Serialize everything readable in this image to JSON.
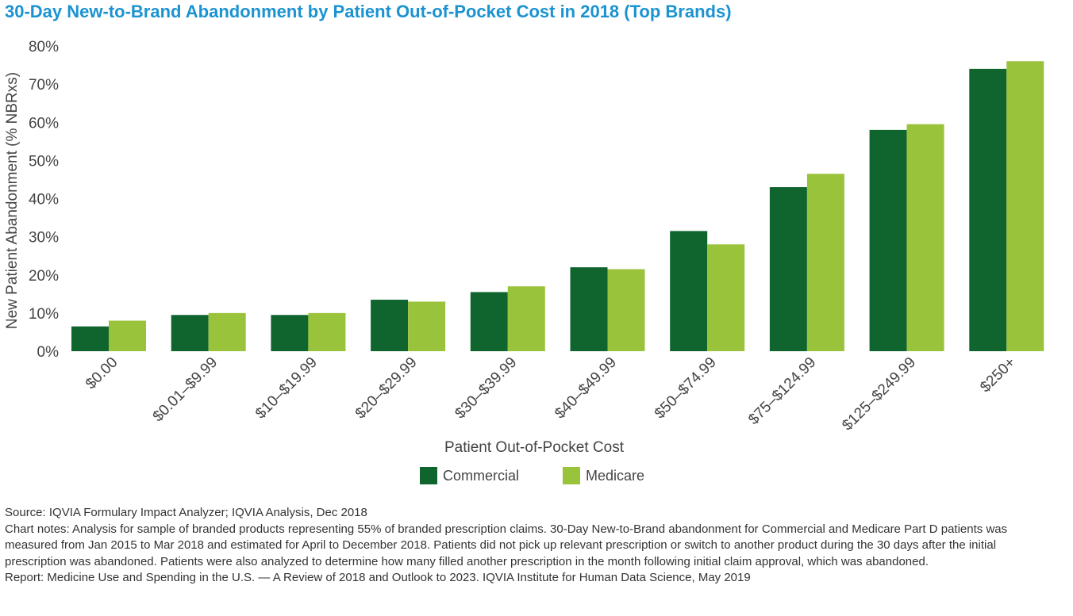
{
  "chart_data": {
    "type": "bar",
    "title": "30-Day New-to-Brand Abandonment by Patient Out-of-Pocket Cost in 2018 (Top Brands)",
    "xlabel": "Patient Out-of-Pocket Cost",
    "ylabel": "New Patient Abandonment (% NBRxs)",
    "ylim": [
      0,
      80
    ],
    "yticks": [
      0,
      10,
      20,
      30,
      40,
      50,
      60,
      70,
      80
    ],
    "ytick_labels": [
      "0%",
      "10%",
      "20%",
      "30%",
      "40%",
      "50%",
      "60%",
      "70%",
      "80%"
    ],
    "grid": false,
    "legend_position": "bottom-center",
    "categories": [
      "$0.00",
      "$0.01–$9.99",
      "$10–$19.99",
      "$20–$29.99",
      "$30–$39.99",
      "$40–$49.99",
      "$50–$74.99",
      "$75–$124.99",
      "$125–$249.99",
      "$250+"
    ],
    "series": [
      {
        "name": "Commercial",
        "color": "#10652f",
        "values": [
          6.5,
          9.5,
          9.5,
          13.5,
          15.5,
          22,
          31.5,
          43,
          58,
          74
        ]
      },
      {
        "name": "Medicare",
        "color": "#9ac33c",
        "values": [
          8,
          10,
          10,
          13,
          17,
          21.5,
          28,
          46.5,
          59.5,
          76
        ]
      }
    ]
  },
  "notes": {
    "source": "Source: IQVIA Formulary Impact Analyzer; IQVIA Analysis, Dec 2018",
    "chart_notes": "Chart notes: Analysis for sample of branded products representing 55% of branded prescription claims. 30-Day New-to-Brand abandonment for Commercial and Medicare Part D patients was measured from Jan 2015 to Mar 2018 and estimated for April to December 2018. Patients did not pick up relevant prescription or switch to another product during the 30 days after the initial prescription was abandoned. Patients were also analyzed to determine how many filled another prescription in the month following initial claim approval, which was abandoned.",
    "report": "Report: Medicine Use and Spending in the U.S. — A Review of 2018 and Outlook to 2023. IQVIA Institute for Human Data Science, May 2019"
  }
}
